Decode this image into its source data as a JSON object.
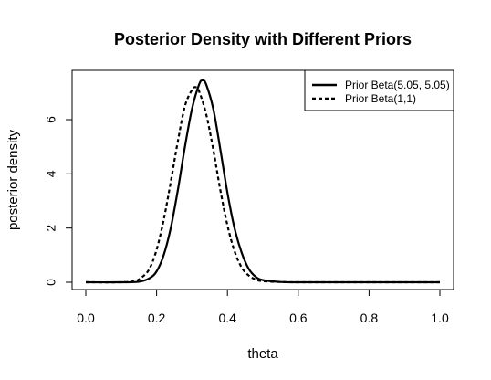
{
  "chart_data": {
    "type": "line",
    "title": "Posterior Density with Different Priors",
    "xlabel": "theta",
    "ylabel": "posterior density",
    "xlim": [
      0,
      1
    ],
    "ylim": [
      0,
      7.5
    ],
    "xticks": [
      "0.0",
      "0.2",
      "0.4",
      "0.6",
      "0.8",
      "1.0"
    ],
    "yticks": [
      "0",
      "2",
      "4",
      "6"
    ],
    "legend_position": "top-right",
    "grid": false,
    "series": [
      {
        "name": "Prior Beta(5.05, 5.05)",
        "line_style": "solid",
        "color": "#000000",
        "x": [
          0.0,
          0.1,
          0.15,
          0.18,
          0.2,
          0.22,
          0.24,
          0.26,
          0.28,
          0.3,
          0.32,
          0.33,
          0.34,
          0.36,
          0.38,
          0.4,
          0.42,
          0.44,
          0.46,
          0.48,
          0.5,
          0.55,
          0.6,
          0.7,
          0.8,
          0.9,
          1.0
        ],
        "y": [
          0,
          0,
          0.02,
          0.15,
          0.4,
          1.0,
          2.0,
          3.4,
          5.0,
          6.4,
          7.3,
          7.45,
          7.3,
          6.4,
          4.9,
          3.3,
          2.0,
          1.1,
          0.5,
          0.2,
          0.08,
          0.01,
          0,
          0,
          0,
          0,
          0
        ]
      },
      {
        "name": "Prior Beta(1,1)",
        "line_style": "dashed",
        "color": "#000000",
        "x": [
          0.0,
          0.1,
          0.14,
          0.16,
          0.18,
          0.2,
          0.22,
          0.24,
          0.26,
          0.28,
          0.3,
          0.31,
          0.32,
          0.34,
          0.36,
          0.38,
          0.4,
          0.42,
          0.44,
          0.46,
          0.48,
          0.5,
          0.55,
          0.6,
          0.7,
          0.8,
          0.9,
          1.0
        ],
        "y": [
          0,
          0,
          0.05,
          0.2,
          0.5,
          1.2,
          2.3,
          3.7,
          5.2,
          6.5,
          7.1,
          7.2,
          7.05,
          6.2,
          4.9,
          3.4,
          2.1,
          1.15,
          0.55,
          0.25,
          0.1,
          0.04,
          0.01,
          0,
          0,
          0,
          0,
          0
        ]
      }
    ]
  }
}
